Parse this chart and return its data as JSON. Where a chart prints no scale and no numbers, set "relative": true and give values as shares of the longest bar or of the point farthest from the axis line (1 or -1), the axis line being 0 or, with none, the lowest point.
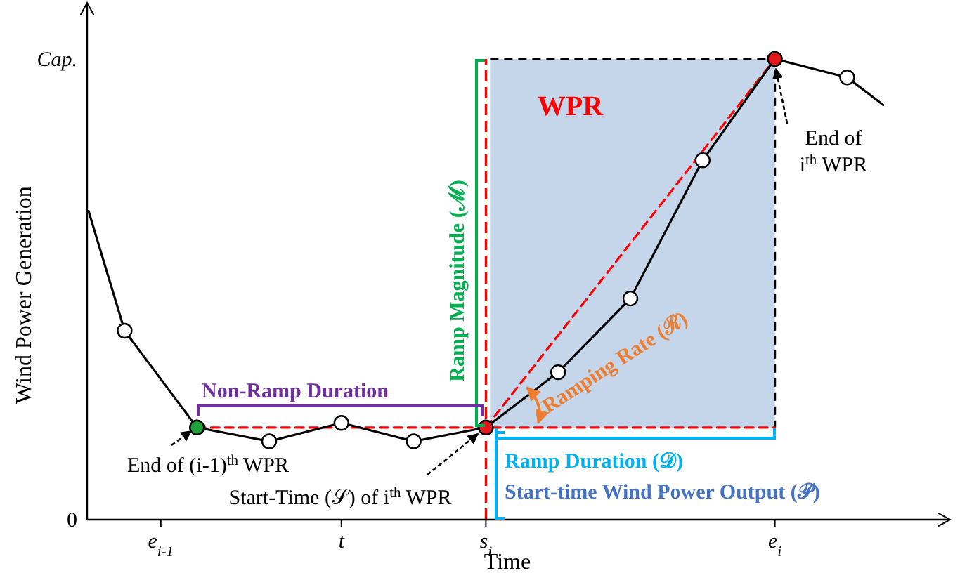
{
  "chart_data": {
    "type": "line",
    "relative": true,
    "xlabel": "Time",
    "ylabel": "Wind Power Generation",
    "categories": [
      null,
      null,
      "e$_{i-1}$",
      null,
      null,
      null,
      null,
      "t",
      null,
      null,
      null,
      "s$_{i}$",
      null,
      null,
      null,
      null,
      null,
      null,
      null,
      "e$_{i}$",
      null,
      null,
      null,
      null
    ],
    "bands": [
      {
        "axis": "x",
        "from": "s$_{i}$",
        "to": "e$_{i}$",
        "label": "WPR",
        "color": "#c5d5ea"
      }
    ],
    "series": [
      {
        "type": "line",
        "color": "#ff0000",
        "line_style": "dashed",
        "values": [
          null,
          null,
          null,
          0.2,
          0.2,
          0.2,
          0.2,
          0.2,
          0.2,
          0.2,
          0.2,
          0.2,
          0.2,
          0.2,
          0.2,
          0.2,
          0.2,
          0.2,
          0.2,
          0.2,
          null,
          null,
          null,
          null
        ]
      },
      {
        "type": "line",
        "color": "#ff0000",
        "line_style": "dashed",
        "values": [
          null,
          null,
          null,
          null,
          null,
          null,
          null,
          null,
          null,
          null,
          null,
          0.2,
          null,
          null,
          null,
          null,
          null,
          null,
          null,
          1.0,
          null,
          null,
          null,
          null
        ]
      },
      {
        "color": "#000000",
        "marker": "circle",
        "line_style": "solid",
        "values": [
          0.67,
          0.41,
          null,
          0.2,
          null,
          0.17,
          null,
          0.21,
          null,
          0.17,
          null,
          0.2,
          null,
          0.32,
          null,
          0.48,
          null,
          0.78,
          null,
          1.0,
          null,
          0.96,
          0.9,
          null
        ],
        "colors": [
          null,
          "#ffffff",
          null,
          "#22a13a",
          null,
          "#ffffff",
          null,
          "#ffffff",
          null,
          "#ffffff",
          null,
          "#e31a1c",
          null,
          "#ffffff",
          null,
          "#ffffff",
          null,
          "#ffffff",
          null,
          "#e31a1c",
          null,
          "#ffffff",
          null,
          null
        ]
      }
    ],
    "ref_lines": [
      {
        "axis": "x",
        "value": "s$_{i}$",
        "color": "#ff0000",
        "line_style": "dashed"
      }
    ],
    "annotations": [
      "Ramp Magnitude (ℳ)",
      "Non-Ramp Duration",
      "Ramping Rate (ℛ)",
      "Ramp Duration (𝒟)",
      "Start-time Wind Power Output (𝒫)",
      "End of (i-1)$^{th}$ WPR",
      "Start-Time (𝒮) of i$^{th}$ WPR",
      "End of\ni$^{th}$ WPR",
      "Cap.",
      "0"
    ]
  }
}
